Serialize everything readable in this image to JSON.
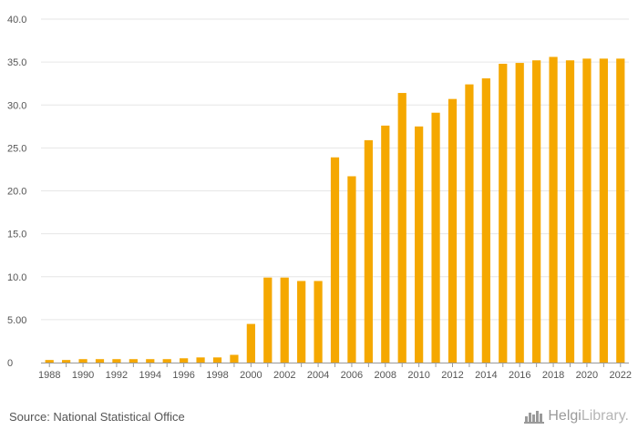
{
  "chart_data": {
    "type": "bar",
    "categories": [
      "1988",
      "1989",
      "1990",
      "1991",
      "1992",
      "1993",
      "1994",
      "1995",
      "1996",
      "1997",
      "1998",
      "1999",
      "2000",
      "2001",
      "2002",
      "2003",
      "2004",
      "2005",
      "2006",
      "2007",
      "2008",
      "2009",
      "2010",
      "2011",
      "2012",
      "2013",
      "2014",
      "2015",
      "2016",
      "2017",
      "2018",
      "2019",
      "2020",
      "2021",
      "2022"
    ],
    "x_tick_labels": [
      "1988",
      "1990",
      "1992",
      "1994",
      "1996",
      "1998",
      "2000",
      "2002",
      "2004",
      "2006",
      "2008",
      "2010",
      "2012",
      "2014",
      "2016",
      "2018",
      "2020",
      "2022"
    ],
    "values": [
      0.3,
      0.3,
      0.4,
      0.4,
      0.4,
      0.4,
      0.4,
      0.4,
      0.5,
      0.6,
      0.6,
      0.9,
      4.5,
      9.9,
      9.9,
      9.5,
      9.5,
      23.9,
      21.7,
      25.9,
      27.6,
      31.4,
      27.5,
      29.1,
      30.7,
      32.4,
      33.1,
      34.8,
      34.9,
      35.2,
      35.6,
      35.2,
      35.4,
      35.4,
      35.4
    ],
    "y_ticks": [
      "0",
      "5.00",
      "10.0",
      "15.0",
      "20.0",
      "25.0",
      "30.0",
      "35.0",
      "40.0"
    ],
    "ylim": [
      0,
      40
    ],
    "grid": true,
    "bar_color": "#f5a800",
    "title": "",
    "xlabel": "",
    "ylabel": ""
  },
  "footer": {
    "source": "Source: National Statistical Office",
    "logo_brand": "Helgi",
    "logo_suffix": "Library."
  }
}
